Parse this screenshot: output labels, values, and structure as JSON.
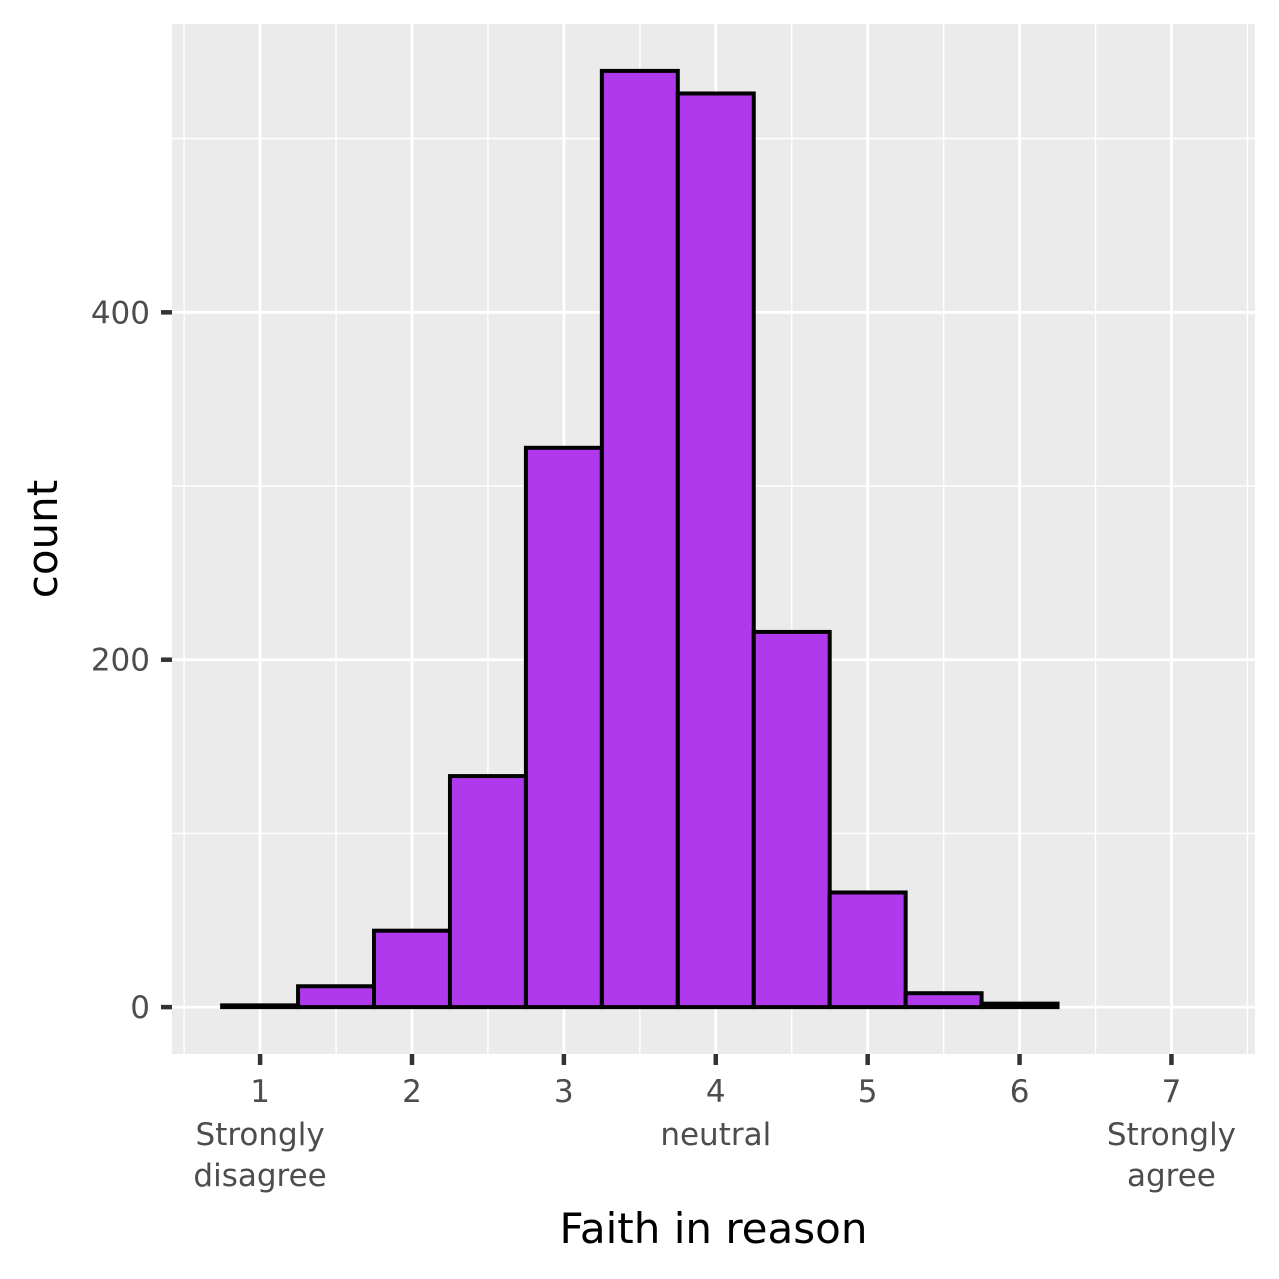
{
  "chart_data": {
    "type": "bar",
    "subtype": "histogram",
    "xlabel": "Faith in reason",
    "ylabel": "count",
    "x_ticks": [
      {
        "value": 1,
        "label": "1",
        "sublabel": [
          "Strongly",
          "disagree"
        ]
      },
      {
        "value": 2,
        "label": "2",
        "sublabel": []
      },
      {
        "value": 3,
        "label": "3",
        "sublabel": []
      },
      {
        "value": 4,
        "label": "4",
        "sublabel": [
          "neutral"
        ]
      },
      {
        "value": 5,
        "label": "5",
        "sublabel": []
      },
      {
        "value": 6,
        "label": "6",
        "sublabel": []
      },
      {
        "value": 7,
        "label": "7",
        "sublabel": [
          "Strongly",
          "agree"
        ]
      }
    ],
    "y_ticks": [
      {
        "value": 0,
        "label": "0"
      },
      {
        "value": 200,
        "label": "200"
      },
      {
        "value": 400,
        "label": "400"
      }
    ],
    "xlim": [
      0.42,
      7.55
    ],
    "ylim": [
      -27,
      566
    ],
    "bins": [
      {
        "x0": 0.75,
        "x1": 1.25,
        "count": 1
      },
      {
        "x0": 1.25,
        "x1": 1.75,
        "count": 12
      },
      {
        "x0": 1.75,
        "x1": 2.25,
        "count": 44
      },
      {
        "x0": 2.25,
        "x1": 2.75,
        "count": 133
      },
      {
        "x0": 2.75,
        "x1": 3.25,
        "count": 322
      },
      {
        "x0": 3.25,
        "x1": 3.75,
        "count": 539
      },
      {
        "x0": 3.75,
        "x1": 4.25,
        "count": 526
      },
      {
        "x0": 4.25,
        "x1": 4.75,
        "count": 216
      },
      {
        "x0": 4.75,
        "x1": 5.25,
        "count": 66
      },
      {
        "x0": 5.25,
        "x1": 5.75,
        "count": 8
      },
      {
        "x0": 5.75,
        "x1": 6.25,
        "count": 2
      },
      {
        "x0": 6.25,
        "x1": 6.75,
        "count": 0
      },
      {
        "x0": 6.75,
        "x1": 7.25,
        "count": 0
      }
    ],
    "grid": true,
    "legend": "none",
    "colors": {
      "fill": "#b039ee",
      "stroke": "#000000",
      "panel": "#ebebeb",
      "grid": "#ffffff",
      "tick_text": "#4d4d4d"
    }
  }
}
